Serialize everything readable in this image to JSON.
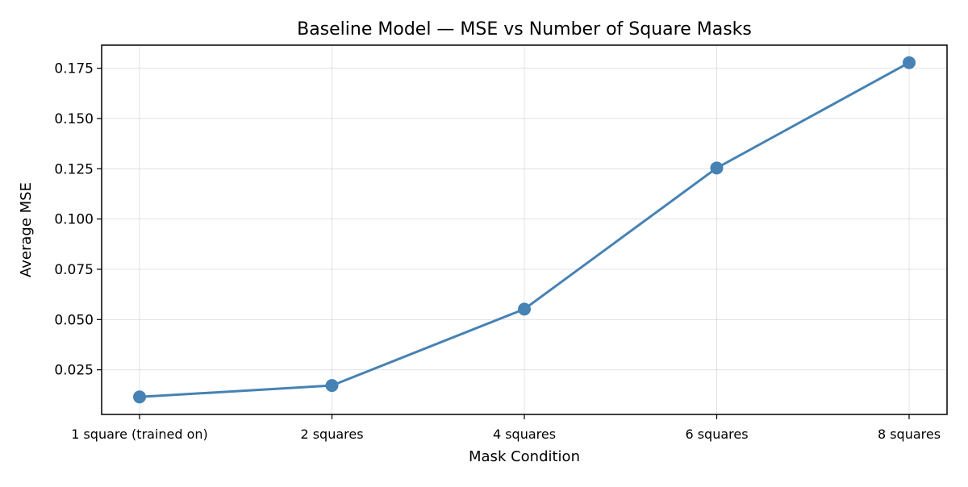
{
  "chart_data": {
    "type": "line",
    "title": "Baseline Model — MSE vs Number of Square Masks",
    "xlabel": "Mask Condition",
    "ylabel": "Average MSE",
    "categories": [
      "1 square (trained on)",
      "2 squares",
      "4 squares",
      "6 squares",
      "8 squares"
    ],
    "series": [
      {
        "values": [
          0.0115,
          0.0172,
          0.0552,
          0.1254,
          0.1778
        ],
        "color": "#4682b4",
        "marker": "circle"
      }
    ],
    "yticks": [
      0.025,
      0.05,
      0.075,
      0.1,
      0.125,
      0.15,
      0.175
    ],
    "ytick_labels": [
      "0.025",
      "0.050",
      "0.075",
      "0.100",
      "0.125",
      "0.150",
      "0.175"
    ],
    "ylim": [
      0.0028,
      0.1865
    ],
    "grid": true,
    "grid_color": "#b0b0b0",
    "axis_color": "#000000"
  }
}
